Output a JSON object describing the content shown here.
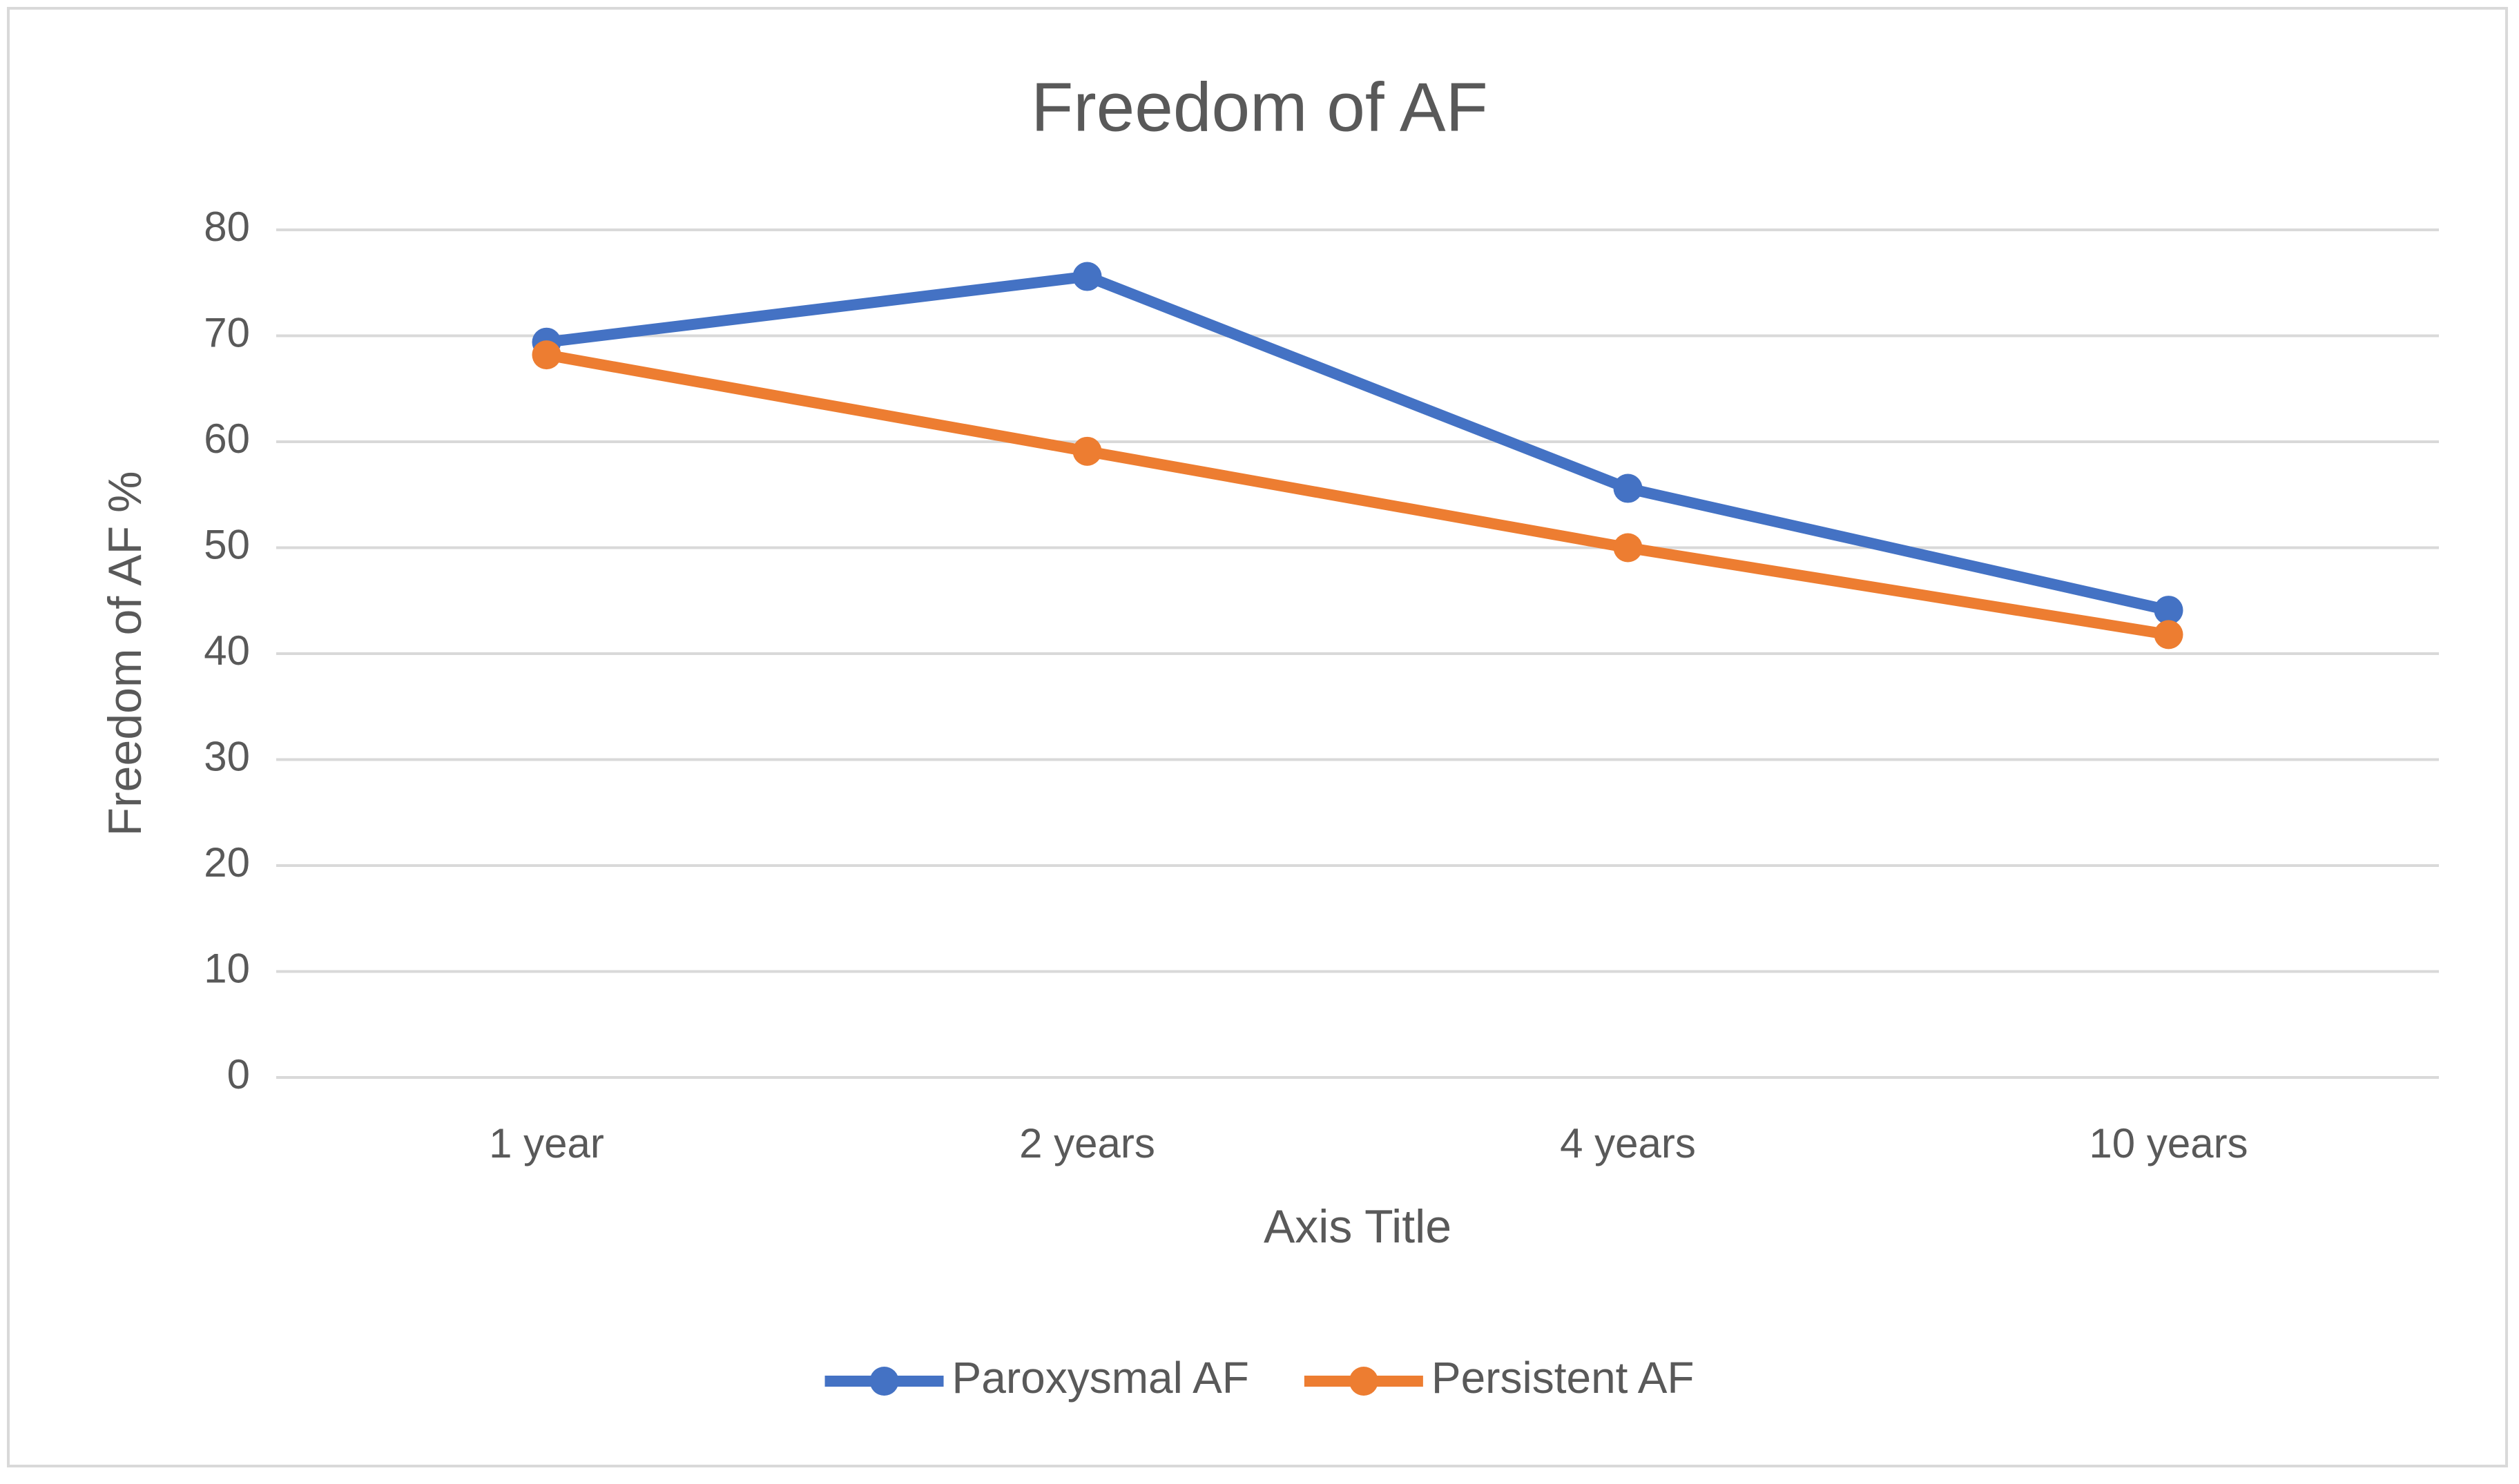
{
  "chart_data": {
    "type": "line",
    "title": "Freedom of AF",
    "x_label": "Axis Title",
    "y_label": "Freedom of AF %",
    "categories": [
      "1 year",
      "2 years",
      "4 years",
      "10 years"
    ],
    "series": [
      {
        "name": "Paroxysmal AF",
        "color": "#4472c4",
        "values": [
          69.4,
          75.6,
          55.6,
          44.1
        ]
      },
      {
        "name": "Persistent AF",
        "color": "#ed7d31",
        "values": [
          68.2,
          59.1,
          50,
          41.8
        ]
      }
    ],
    "ylim": [
      0,
      80
    ],
    "yticks": [
      0,
      10,
      20,
      30,
      40,
      50,
      60,
      70,
      80
    ],
    "grid": true,
    "legend": "bottom"
  }
}
